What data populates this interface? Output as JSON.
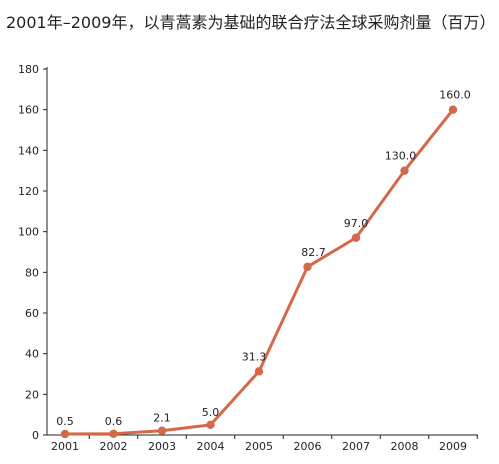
{
  "chart_data": {
    "type": "line",
    "title": "2001年–2009年，以青蒿素为基础的联合疗法全球采购剂量（百万）",
    "xlabel": "",
    "ylabel": "",
    "categories": [
      "2001",
      "2002",
      "2003",
      "2004",
      "2005",
      "2006",
      "2007",
      "2008",
      "2009"
    ],
    "series": [
      {
        "values": [
          0.5,
          0.6,
          2.1,
          5.0,
          31.3,
          82.7,
          97.0,
          130.0,
          160.0
        ],
        "labels": [
          "0.5",
          "0.6",
          "2.1",
          "5.0",
          "31.3",
          "82.7",
          "97.0",
          "130.0",
          "160.0"
        ],
        "color": "#d4694a"
      }
    ],
    "ylim": [
      0,
      180
    ],
    "yticks": [
      0,
      20,
      40,
      60,
      80,
      100,
      120,
      140,
      160,
      180
    ],
    "ytick_labels": [
      "0",
      "20",
      "40",
      "60",
      "80",
      "100",
      "120",
      "140",
      "160",
      "180"
    ],
    "grid": false,
    "axis_color": "#231f20"
  }
}
